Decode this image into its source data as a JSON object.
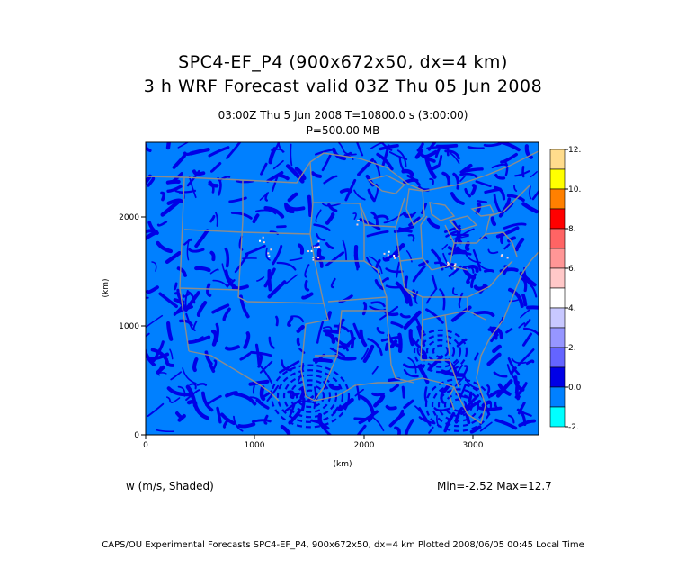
{
  "title": {
    "line1": "SPC4-EF_P4 (900x672x50, dx=4 km)",
    "line2": "3 h WRF Forecast valid 03Z Thu 05 Jun 2008",
    "sub1": "03:00Z Thu  5 Jun 2008     T=10800.0 s (3:00:00)",
    "sub2": "P=500.00 MB"
  },
  "variable_label": "w (m/s, Shaded)",
  "minmax_label": "Min=-2.52 Max=12.7",
  "footer": "CAPS/OU Experimental Forecasts  SPC4-EF_P4, 900x672x50, dx=4 km  Plotted 2008/06/05 00:45 Local Time",
  "axes": {
    "x_label": "(km)",
    "y_label": "(km)",
    "x_ticks": [
      "0",
      "1000",
      "2000",
      "3000"
    ],
    "y_ticks": [
      "0",
      "1000",
      "2000"
    ]
  },
  "colorbar": {
    "labels": [
      "12.",
      "10.",
      "8.",
      "6.",
      "4.",
      "2.",
      "0.0",
      "-2."
    ],
    "colors": [
      "#ffdc8c",
      "#ffff00",
      "#ff8000",
      "#ff0000",
      "#ff6464",
      "#ff9696",
      "#ffc8c8",
      "#ffffff",
      "#c8c8ff",
      "#9696ff",
      "#6464ff",
      "#0000e6",
      "#0080ff",
      "#00ffff"
    ]
  },
  "map": {
    "background_color": "#0080ff",
    "dark_color": "#0000e6",
    "border_color": "#8c8c8c"
  }
}
